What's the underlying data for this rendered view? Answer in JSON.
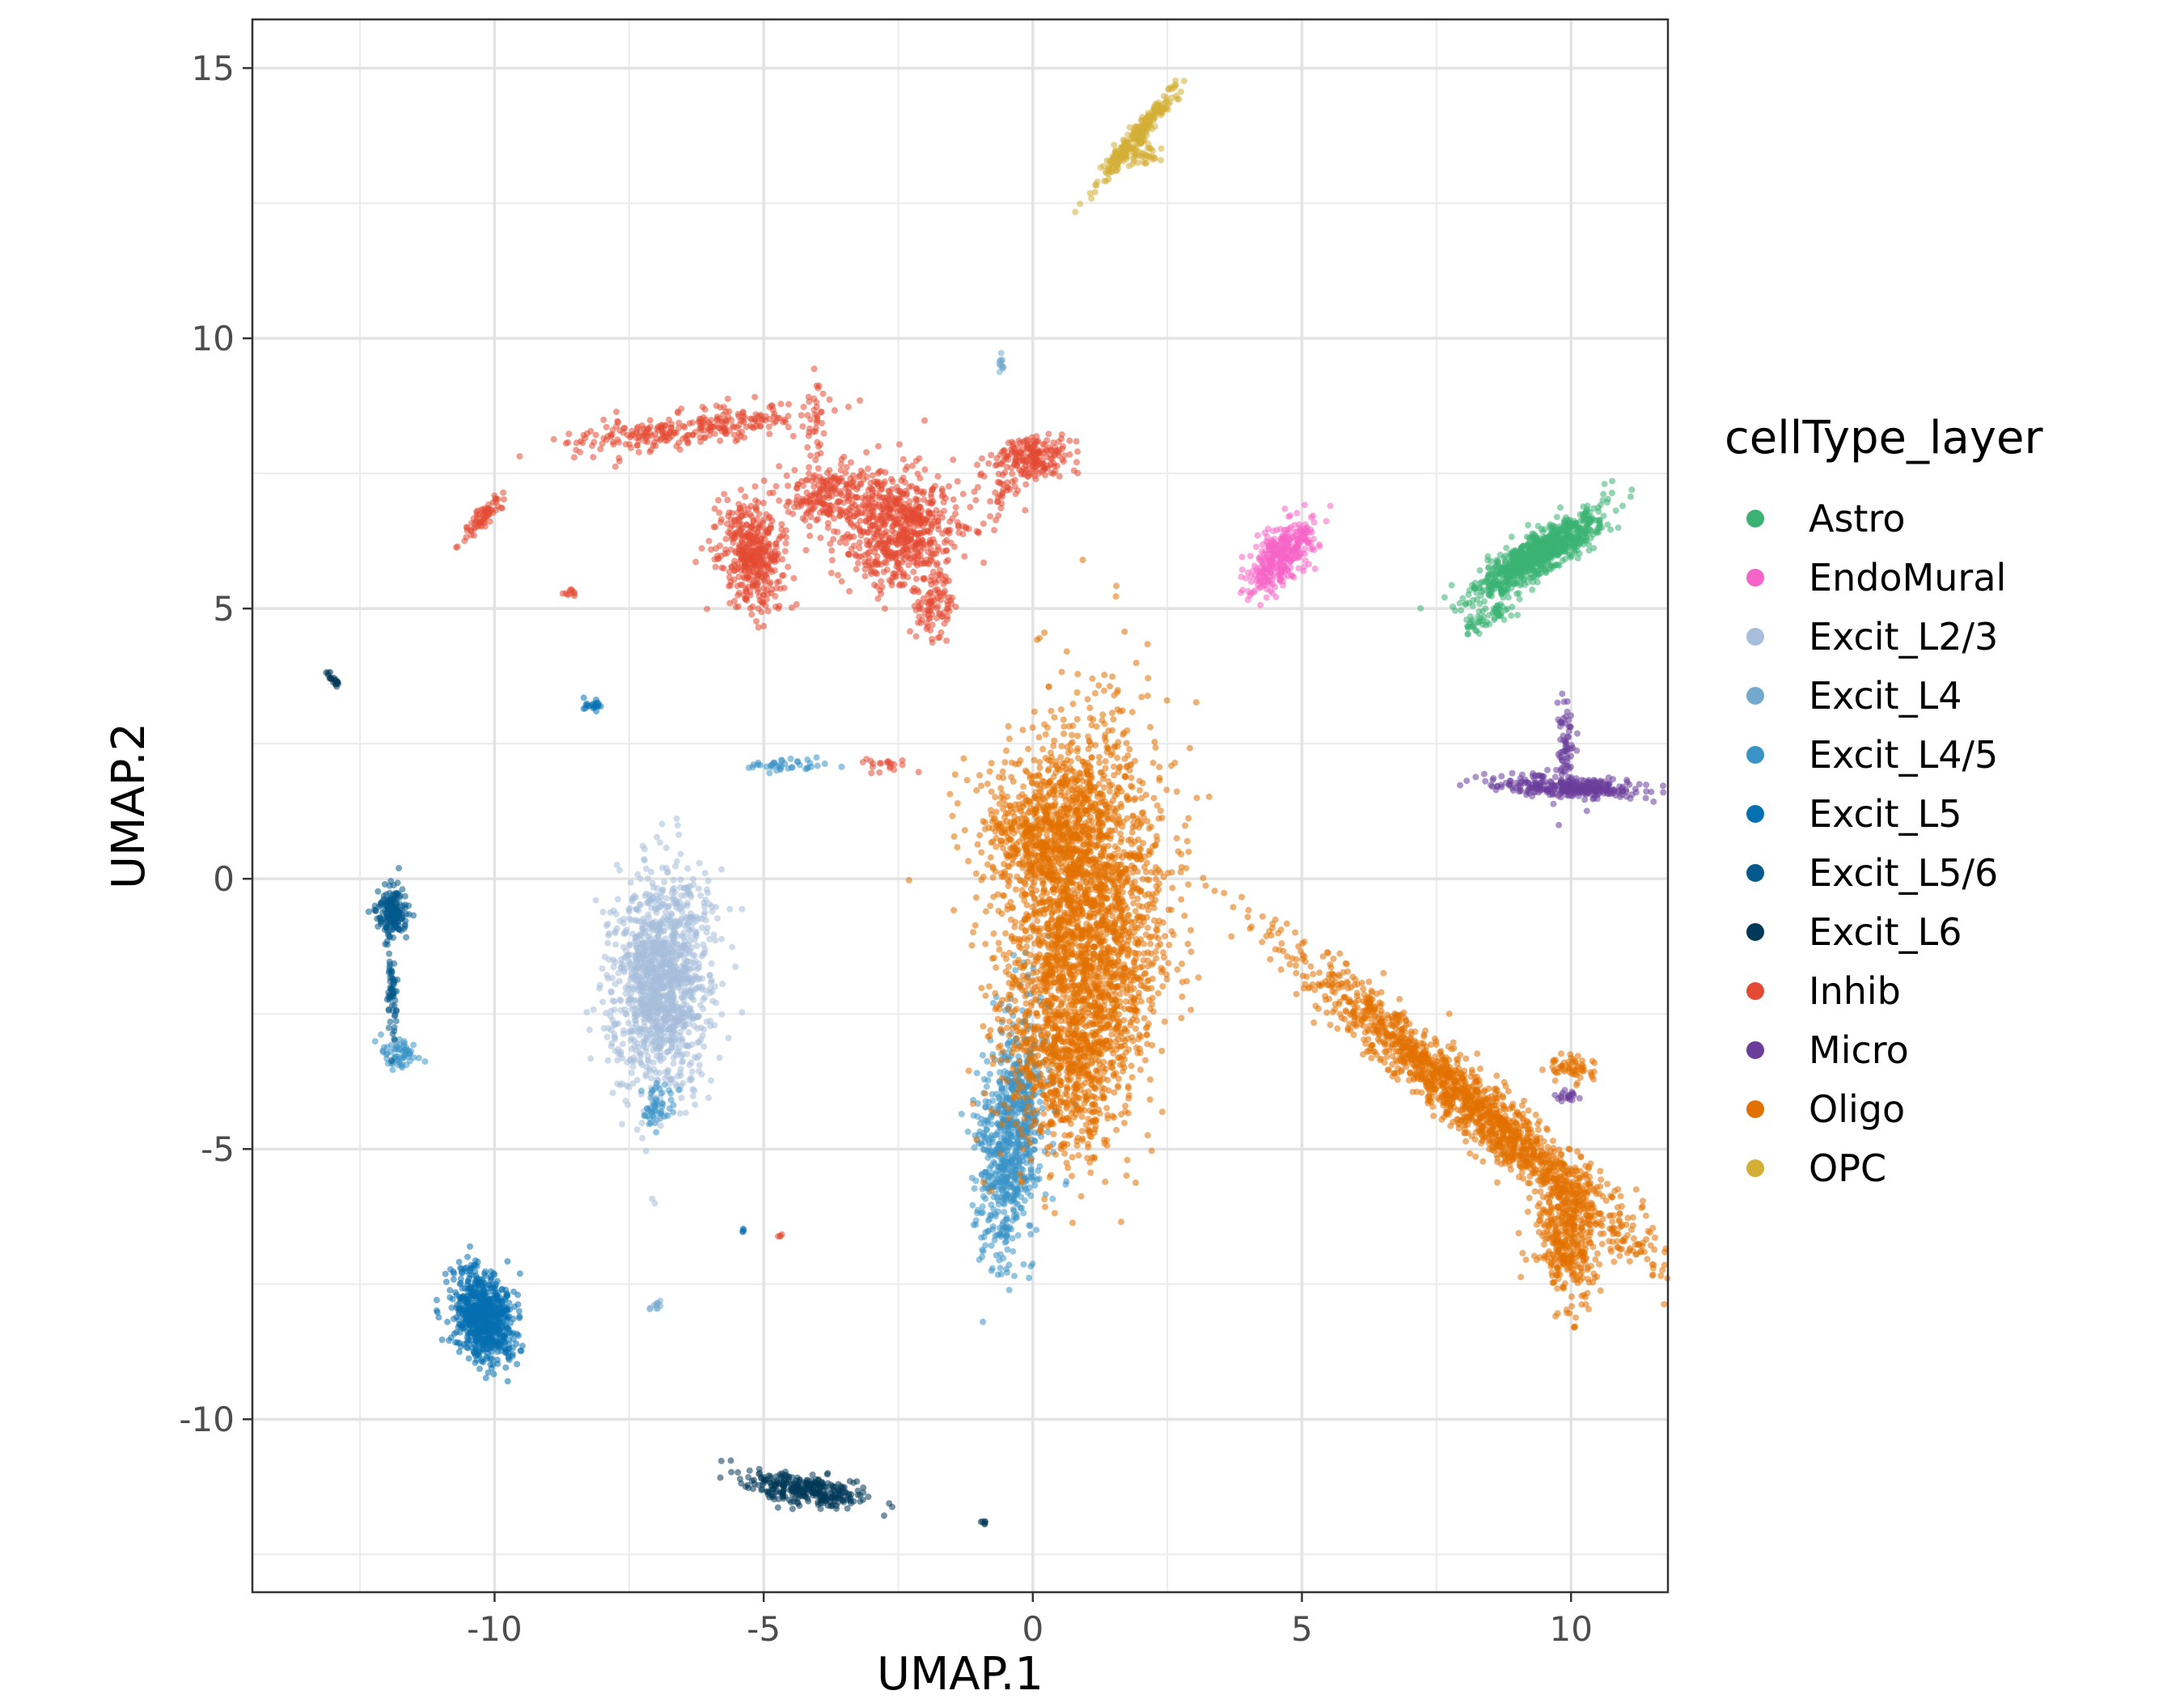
{
  "chart_data": {
    "type": "scatter",
    "title": "",
    "xlabel": "UMAP.1",
    "ylabel": "UMAP.2",
    "xlim": [
      -14.5,
      11.8
    ],
    "ylim": [
      -13.2,
      15.9
    ],
    "x_ticks": [
      -10,
      -5,
      0,
      5,
      10
    ],
    "y_ticks": [
      -10,
      -5,
      0,
      5,
      10,
      15
    ],
    "x_tick_labels": [
      "-10",
      "-5",
      "0",
      "5",
      "10"
    ],
    "y_tick_labels": [
      "-10",
      "-5",
      "0",
      "5",
      "10",
      "15"
    ],
    "grid": true,
    "legend": {
      "title": "cellType_layer",
      "position": "right"
    },
    "series": [
      {
        "name": "Astro",
        "color": "#3BB273",
        "clusters": [
          {
            "cx": 9.4,
            "cy": 6.0,
            "sx": 0.55,
            "sy": 0.38,
            "rho": 0.85,
            "n": 900
          },
          {
            "cx": 8.5,
            "cy": 4.9,
            "sx": 0.25,
            "sy": 0.2,
            "rho": 0.8,
            "n": 60
          }
        ]
      },
      {
        "name": "EndoMural",
        "color": "#F564C6",
        "clusters": [
          {
            "cx": 4.6,
            "cy": 6.0,
            "sx": 0.3,
            "sy": 0.35,
            "rho": 0.6,
            "n": 350
          }
        ]
      },
      {
        "name": "Excit_L2/3",
        "color": "#A6BDDB",
        "clusters": [
          {
            "cx": -6.9,
            "cy": -1.9,
            "sx": 0.45,
            "sy": 1.0,
            "rho": 0.1,
            "n": 1300
          }
        ]
      },
      {
        "name": "Excit_L4",
        "color": "#74A9CF",
        "clusters": [
          {
            "cx": -0.6,
            "cy": 9.5,
            "sx": 0.04,
            "sy": 0.06,
            "rho": 0.0,
            "n": 12
          },
          {
            "cx": -7.0,
            "cy": -7.9,
            "sx": 0.06,
            "sy": 0.05,
            "rho": 0.0,
            "n": 10
          }
        ]
      },
      {
        "name": "Excit_L4/5",
        "color": "#3A93C6",
        "clusters": [
          {
            "cx": -0.4,
            "cy": -4.8,
            "sx": 0.3,
            "sy": 1.1,
            "rho": 0.3,
            "n": 800
          },
          {
            "cx": -11.8,
            "cy": -3.2,
            "sx": 0.18,
            "sy": 0.15,
            "rho": 0.0,
            "n": 60
          },
          {
            "cx": -7.0,
            "cy": -4.2,
            "sx": 0.15,
            "sy": 0.2,
            "rho": 0.0,
            "n": 50
          },
          {
            "cx": -4.5,
            "cy": 2.1,
            "sx": 0.4,
            "sy": 0.06,
            "rho": 0.0,
            "n": 40
          }
        ]
      },
      {
        "name": "Excit_L5",
        "color": "#0570B0",
        "clusters": [
          {
            "cx": -10.2,
            "cy": -8.1,
            "sx": 0.28,
            "sy": 0.42,
            "rho": -0.2,
            "n": 750
          },
          {
            "cx": -8.2,
            "cy": 3.2,
            "sx": 0.08,
            "sy": 0.05,
            "rho": 0.0,
            "n": 20
          },
          {
            "cx": -5.4,
            "cy": -6.5,
            "sx": 0.02,
            "sy": 0.02,
            "rho": 0.0,
            "n": 4
          }
        ]
      },
      {
        "name": "Excit_L5/6",
        "color": "#045A8D",
        "clusters": [
          {
            "cx": -11.9,
            "cy": -0.6,
            "sx": 0.15,
            "sy": 0.22,
            "rho": 0.0,
            "n": 180
          },
          {
            "cx": -11.9,
            "cy": -2.1,
            "sx": 0.05,
            "sy": 0.5,
            "rho": 0.0,
            "n": 60
          }
        ]
      },
      {
        "name": "Excit_L6",
        "color": "#023858",
        "clusters": [
          {
            "cx": -4.3,
            "cy": -11.3,
            "sx": 0.55,
            "sy": 0.16,
            "rho": -0.55,
            "n": 300
          },
          {
            "cx": -13.0,
            "cy": 3.7,
            "sx": 0.07,
            "sy": 0.08,
            "rho": -0.8,
            "n": 20
          },
          {
            "cx": -0.9,
            "cy": -11.9,
            "sx": 0.04,
            "sy": 0.03,
            "rho": 0.0,
            "n": 6
          }
        ]
      },
      {
        "name": "Inhib",
        "color": "#E34A33",
        "clusters": [
          {
            "cx": -2.5,
            "cy": 6.5,
            "sx": 0.55,
            "sy": 0.55,
            "rho": 0.0,
            "n": 650
          },
          {
            "cx": -5.2,
            "cy": 6.0,
            "sx": 0.32,
            "sy": 0.5,
            "rho": -0.2,
            "n": 420
          },
          {
            "cx": -3.9,
            "cy": 7.1,
            "sx": 0.45,
            "sy": 0.3,
            "rho": 0.0,
            "n": 200
          },
          {
            "cx": -1.9,
            "cy": 5.1,
            "sx": 0.2,
            "sy": 0.3,
            "rho": 0.0,
            "n": 90
          },
          {
            "cx": -6.5,
            "cy": 8.3,
            "sx": 1.1,
            "sy": 0.2,
            "rho": 0.6,
            "n": 280
          },
          {
            "cx": 0.0,
            "cy": 7.8,
            "sx": 0.35,
            "sy": 0.2,
            "rho": 0.0,
            "n": 200
          },
          {
            "cx": -0.6,
            "cy": 7.1,
            "sx": 0.2,
            "sy": 0.3,
            "rho": 0.0,
            "n": 40
          },
          {
            "cx": -10.2,
            "cy": 6.7,
            "sx": 0.2,
            "sy": 0.22,
            "rho": 0.9,
            "n": 70
          },
          {
            "cx": -8.6,
            "cy": 5.3,
            "sx": 0.05,
            "sy": 0.04,
            "rho": 0.0,
            "n": 10
          },
          {
            "cx": -4.0,
            "cy": 8.5,
            "sx": 0.06,
            "sy": 0.5,
            "rho": 0.0,
            "n": 30
          },
          {
            "cx": -2.8,
            "cy": 2.1,
            "sx": 0.25,
            "sy": 0.08,
            "rho": -0.5,
            "n": 20
          },
          {
            "cx": -4.7,
            "cy": -6.6,
            "sx": 0.02,
            "sy": 0.02,
            "rho": 0.0,
            "n": 4
          }
        ]
      },
      {
        "name": "Micro",
        "color": "#6A3D9A",
        "clusters": [
          {
            "cx": 9.9,
            "cy": 1.7,
            "sx": 0.65,
            "sy": 0.1,
            "rho": -0.3,
            "n": 300
          },
          {
            "cx": 9.9,
            "cy": 2.4,
            "sx": 0.08,
            "sy": 0.4,
            "rho": 0.0,
            "n": 70
          },
          {
            "cx": 9.9,
            "cy": -4.0,
            "sx": 0.12,
            "sy": 0.06,
            "rho": 0.0,
            "n": 20
          }
        ]
      },
      {
        "name": "Oligo",
        "color": "#E17100",
        "clusters": [
          {
            "cx": 0.9,
            "cy": -0.9,
            "sx": 0.75,
            "sy": 1.8,
            "rho": 0.15,
            "n": 2600
          },
          {
            "cx": 0.2,
            "cy": 1.0,
            "sx": 0.6,
            "sy": 0.6,
            "rho": 0.0,
            "n": 500
          },
          {
            "cx": 0.8,
            "cy": -3.4,
            "sx": 0.5,
            "sy": 0.8,
            "rho": 0.3,
            "n": 400
          },
          {
            "cx": 8.2,
            "cy": -4.2,
            "sx": 1.6,
            "sy": 1.35,
            "rho": -0.97,
            "n": 1600
          },
          {
            "cx": 9.9,
            "cy": -6.6,
            "sx": 0.3,
            "sy": 0.6,
            "rho": -0.3,
            "n": 400
          },
          {
            "cx": 10.0,
            "cy": -3.5,
            "sx": 0.2,
            "sy": 0.12,
            "rho": 0.0,
            "n": 60
          }
        ]
      },
      {
        "name": "OPC",
        "color": "#D4AF37",
        "clusters": [
          {
            "cx": 1.9,
            "cy": 13.7,
            "sx": 0.42,
            "sy": 0.5,
            "rho": 0.97,
            "n": 250
          },
          {
            "cx": 2.0,
            "cy": 13.4,
            "sx": 0.2,
            "sy": 0.12,
            "rho": 0.0,
            "n": 40
          }
        ]
      }
    ]
  }
}
